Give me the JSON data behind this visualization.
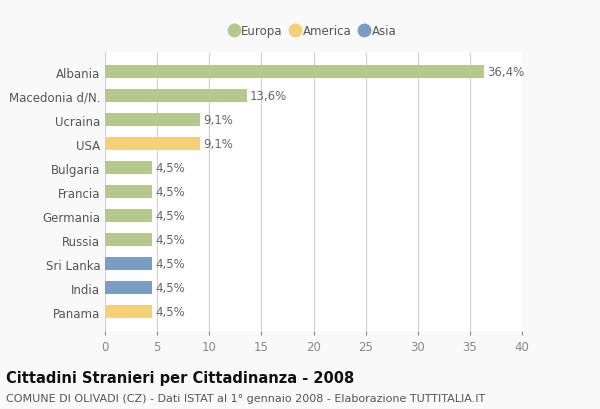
{
  "countries": [
    "Albania",
    "Macedonia d/N.",
    "Ucraina",
    "USA",
    "Bulgaria",
    "Francia",
    "Germania",
    "Russia",
    "Sri Lanka",
    "India",
    "Panama"
  ],
  "values": [
    36.4,
    13.6,
    9.1,
    9.1,
    4.5,
    4.5,
    4.5,
    4.5,
    4.5,
    4.5,
    4.5
  ],
  "labels": [
    "36,4%",
    "13,6%",
    "9,1%",
    "9,1%",
    "4,5%",
    "4,5%",
    "4,5%",
    "4,5%",
    "4,5%",
    "4,5%",
    "4,5%"
  ],
  "continents": [
    "Europa",
    "Europa",
    "Europa",
    "America",
    "Europa",
    "Europa",
    "Europa",
    "Europa",
    "Asia",
    "Asia",
    "America"
  ],
  "colors": {
    "Europa": "#b5c98e",
    "America": "#f5d07a",
    "Asia": "#7b9dc4"
  },
  "legend_labels": [
    "Europa",
    "America",
    "Asia"
  ],
  "xlim": [
    0,
    40
  ],
  "xticks": [
    0,
    5,
    10,
    15,
    20,
    25,
    30,
    35,
    40
  ],
  "title": "Cittadini Stranieri per Cittadinanza - 2008",
  "subtitle": "COMUNE DI OLIVADI (CZ) - Dati ISTAT al 1° gennaio 2008 - Elaborazione TUTTITALIA.IT",
  "background_color": "#f9f9f9",
  "bar_background": "#ffffff",
  "grid_color": "#d0d0d0",
  "label_fontsize": 8.5,
  "tick_fontsize": 8.5,
  "title_fontsize": 10.5,
  "subtitle_fontsize": 8
}
